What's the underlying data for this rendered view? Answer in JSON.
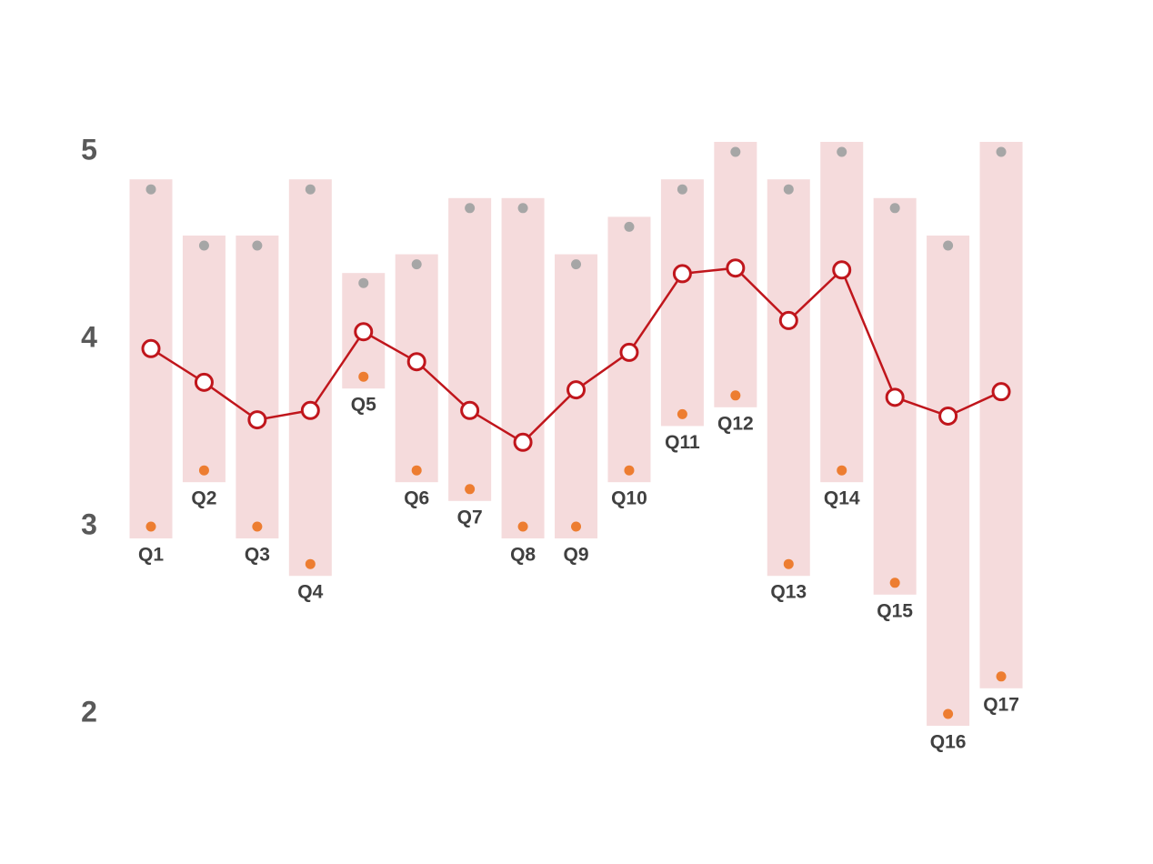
{
  "chart_data": {
    "type": "range-line",
    "categories": [
      "Q1",
      "Q2",
      "Q3",
      "Q4",
      "Q5",
      "Q6",
      "Q7",
      "Q8",
      "Q9",
      "Q10",
      "Q11",
      "Q12",
      "Q13",
      "Q14",
      "Q15",
      "Q16",
      "Q17"
    ],
    "series": [
      {
        "color": "#a6a6a6",
        "values": [
          4.8,
          4.5,
          4.5,
          4.8,
          4.3,
          4.4,
          4.7,
          4.7,
          4.4,
          4.6,
          4.8,
          5.0,
          4.8,
          5.0,
          4.7,
          4.5,
          5.0
        ]
      },
      {
        "color": "#ed7d31",
        "values": [
          3.0,
          3.3,
          3.0,
          2.8,
          3.8,
          3.3,
          3.2,
          3.0,
          3.0,
          3.3,
          3.6,
          3.7,
          2.8,
          3.3,
          2.7,
          2.0,
          2.2
        ]
      },
      {
        "color": "#c0161c",
        "values": [
          3.95,
          3.77,
          3.57,
          3.62,
          4.04,
          3.88,
          3.62,
          3.45,
          3.73,
          3.93,
          4.35,
          4.38,
          4.1,
          4.37,
          3.69,
          3.59,
          3.72
        ]
      }
    ],
    "band_color": "#f4d7d8",
    "ylim": [
      1.75,
      5.75
    ],
    "yticks": [
      2,
      3,
      4,
      5
    ],
    "grid": false
  }
}
